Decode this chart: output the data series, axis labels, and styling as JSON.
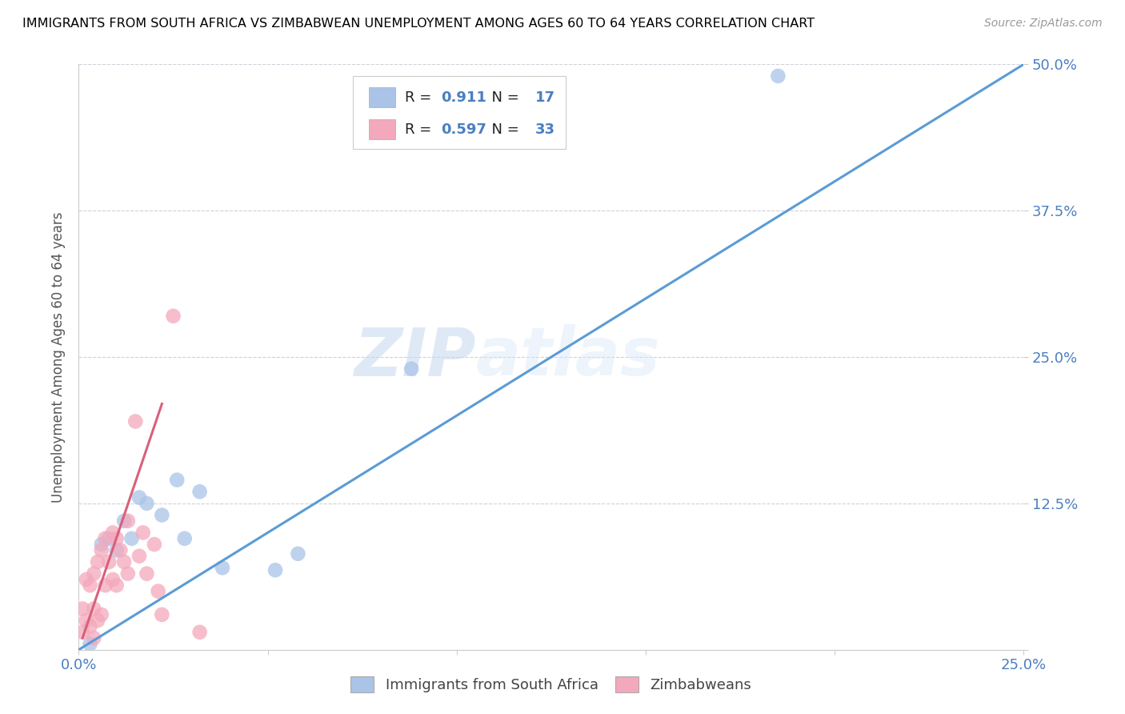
{
  "title": "IMMIGRANTS FROM SOUTH AFRICA VS ZIMBABWEAN UNEMPLOYMENT AMONG AGES 60 TO 64 YEARS CORRELATION CHART",
  "source": "Source: ZipAtlas.com",
  "ylabel": "Unemployment Among Ages 60 to 64 years",
  "xlim": [
    0,
    0.25
  ],
  "ylim": [
    0,
    0.5
  ],
  "xticks": [
    0.0,
    0.05,
    0.1,
    0.15,
    0.2,
    0.25
  ],
  "yticks": [
    0.0,
    0.125,
    0.25,
    0.375,
    0.5
  ],
  "xticklabels": [
    "0.0%",
    "",
    "",
    "",
    "",
    "25.0%"
  ],
  "yticklabels": [
    "",
    "12.5%",
    "25.0%",
    "37.5%",
    "50.0%"
  ],
  "watermark_zip": "ZIP",
  "watermark_atlas": "atlas",
  "blue_color": "#aac4e8",
  "pink_color": "#f4a8bc",
  "blue_line_color": "#5b9bd5",
  "pink_line_color": "#d9607a",
  "diag_line_color": "#c8c8d4",
  "R_blue": "0.911",
  "N_blue": "17",
  "R_pink": "0.597",
  "N_pink": "33",
  "legend_label_blue": "Immigrants from South Africa",
  "legend_label_pink": "Zimbabweans",
  "blue_scatter_x": [
    0.003,
    0.006,
    0.008,
    0.01,
    0.012,
    0.014,
    0.016,
    0.018,
    0.022,
    0.026,
    0.028,
    0.032,
    0.038,
    0.052,
    0.058,
    0.088,
    0.185
  ],
  "blue_scatter_y": [
    0.005,
    0.09,
    0.095,
    0.085,
    0.11,
    0.095,
    0.13,
    0.125,
    0.115,
    0.145,
    0.095,
    0.135,
    0.07,
    0.068,
    0.082,
    0.24,
    0.49
  ],
  "pink_scatter_x": [
    0.001,
    0.001,
    0.002,
    0.002,
    0.003,
    0.003,
    0.004,
    0.004,
    0.004,
    0.005,
    0.005,
    0.006,
    0.006,
    0.007,
    0.007,
    0.008,
    0.009,
    0.009,
    0.01,
    0.01,
    0.011,
    0.012,
    0.013,
    0.013,
    0.015,
    0.016,
    0.017,
    0.018,
    0.02,
    0.021,
    0.022,
    0.025,
    0.032
  ],
  "pink_scatter_y": [
    0.015,
    0.035,
    0.025,
    0.06,
    0.02,
    0.055,
    0.01,
    0.035,
    0.065,
    0.025,
    0.075,
    0.03,
    0.085,
    0.055,
    0.095,
    0.075,
    0.06,
    0.1,
    0.055,
    0.095,
    0.085,
    0.075,
    0.065,
    0.11,
    0.195,
    0.08,
    0.1,
    0.065,
    0.09,
    0.05,
    0.03,
    0.285,
    0.015
  ],
  "blue_line_x": [
    -0.002,
    0.252
  ],
  "blue_line_y": [
    -0.004,
    0.504
  ],
  "pink_line_x": [
    0.001,
    0.022
  ],
  "pink_line_y": [
    0.01,
    0.21
  ]
}
